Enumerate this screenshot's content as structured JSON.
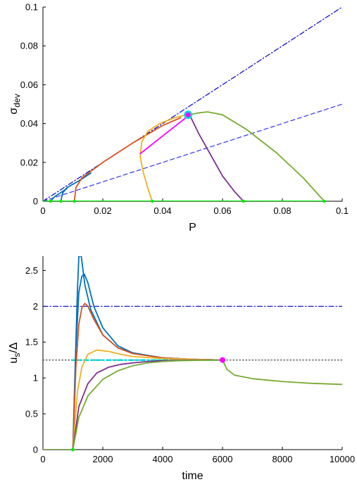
{
  "chart_data": [
    {
      "type": "line",
      "xlabel": "P",
      "ylabel_main": "σ",
      "ylabel_sub": "dev",
      "xlim": [
        0,
        0.1
      ],
      "ylim": [
        0,
        0.1
      ],
      "xticks": [
        0,
        0.02,
        0.04,
        0.06,
        0.08,
        0.1
      ],
      "xtick_labels": [
        "0",
        "0.02",
        "0.04",
        "0.06",
        "0.08",
        "0.1"
      ],
      "yticks": [
        0,
        0.02,
        0.04,
        0.06,
        0.08,
        0.1
      ],
      "ytick_labels": [
        "0",
        "0.02",
        "0.04",
        "0.06",
        "0.08",
        "0.1"
      ],
      "grid": false,
      "colors": {
        "dashdot": "#0000cc",
        "dashed": "#3333ee",
        "baseline": "#00ee00",
        "magenta": "#ff00ff",
        "cyan": "#00dddd"
      },
      "reference_lines": [
        {
          "style": "dashdot",
          "color": "#0000cc",
          "x": [
            0,
            0.1
          ],
          "y": [
            0,
            0.1
          ]
        },
        {
          "style": "dashed",
          "color": "#3333ee",
          "x": [
            0,
            0.1
          ],
          "y": [
            0,
            0.05
          ]
        }
      ],
      "series": [
        {
          "color": "#0072bd",
          "x": [
            0.0025,
            0.004,
            0.006,
            0.008
          ],
          "y": [
            0,
            0.0025,
            0.0045,
            0.0065
          ]
        },
        {
          "color": "#0072bd",
          "x": [
            0.006,
            0.0065,
            0.008,
            0.012,
            0.016
          ],
          "y": [
            0,
            0.004,
            0.007,
            0.0105,
            0.0145
          ]
        },
        {
          "color": "#d95319",
          "x": [
            0.0105,
            0.011,
            0.013,
            0.02,
            0.03,
            0.04,
            0.046
          ],
          "y": [
            0,
            0.007,
            0.012,
            0.02,
            0.03,
            0.039,
            0.043
          ]
        },
        {
          "color": "#edb120",
          "x": [
            0.0365,
            0.035,
            0.0335,
            0.0325,
            0.033,
            0.035,
            0.039,
            0.044,
            0.048
          ],
          "y": [
            0,
            0.007,
            0.015,
            0.023,
            0.0305,
            0.036,
            0.04,
            0.043,
            0.0445
          ]
        },
        {
          "color": "#7e2f8e",
          "x": [
            0.049,
            0.052,
            0.056,
            0.06,
            0.064,
            0.067
          ],
          "y": [
            0.0445,
            0.035,
            0.024,
            0.013,
            0.005,
            0
          ]
        },
        {
          "color": "#77ac30",
          "x": [
            0.049,
            0.052,
            0.055,
            0.06,
            0.068,
            0.078,
            0.087,
            0.094
          ],
          "y": [
            0.0445,
            0.0455,
            0.046,
            0.0445,
            0.037,
            0.025,
            0.012,
            0
          ]
        },
        {
          "color": "#ff00ff",
          "x": [
            0.0325,
            0.049
          ],
          "y": [
            0.0245,
            0.0445
          ]
        }
      ],
      "baseline": {
        "color": "#00ee00",
        "x": [
          0,
          0.094
        ],
        "y": [
          0,
          0
        ]
      },
      "baseline_markers": {
        "color": "#00ee00",
        "x": [
          0.0025,
          0.006,
          0.0105,
          0.0365,
          0.067,
          0.094
        ],
        "y": [
          0,
          0,
          0,
          0,
          0,
          0
        ]
      },
      "highlight_point": {
        "x": 0.0485,
        "y": 0.0445,
        "outer_color": "#00dddd",
        "inner_color": "#ff00ff"
      }
    },
    {
      "type": "line",
      "xlabel": "time",
      "ylabel_main": "u",
      "ylabel_sub": "s",
      "ylabel_tail": "/Δ",
      "xlim": [
        0,
        10000
      ],
      "ylim": [
        0,
        2.7
      ],
      "xticks": [
        0,
        2000,
        4000,
        6000,
        8000,
        10000
      ],
      "xtick_labels": [
        "0",
        "2000",
        "4000",
        "6000",
        "8000",
        "10000"
      ],
      "yticks": [
        0,
        0.5,
        1,
        1.5,
        2,
        2.5
      ],
      "ytick_labels": [
        "0",
        "0.5",
        "1",
        "1.5",
        "2",
        "2.5"
      ],
      "grid": false,
      "reference_lines": [
        {
          "style": "dashdot",
          "color": "#0000cc",
          "x": [
            0,
            10000
          ],
          "y": [
            2,
            2
          ]
        },
        {
          "style": "dotted",
          "color": "#333333",
          "x": [
            0,
            10000
          ],
          "y": [
            1.25,
            1.25
          ]
        },
        {
          "style": "dashdot-thick",
          "color": "#00dddd",
          "x": [
            1000,
            6000
          ],
          "y": [
            1.25,
            1.25
          ]
        }
      ],
      "series": [
        {
          "color": "#77ac30",
          "x": [
            0,
            1000
          ],
          "y": [
            0,
            0
          ]
        },
        {
          "color": "#0072bd",
          "x": [
            1000,
            1080,
            1150,
            1200,
            1280,
            1400,
            1600,
            2000,
            2500,
            3000,
            4000,
            5000,
            6000
          ],
          "y": [
            0,
            1.2,
            2.2,
            2.7,
            2.7,
            2.3,
            1.95,
            1.6,
            1.42,
            1.35,
            1.28,
            1.26,
            1.25
          ]
        },
        {
          "color": "#0072bd",
          "x": [
            1000,
            1100,
            1200,
            1300,
            1380,
            1500,
            1700,
            2000,
            2500,
            3000,
            4000,
            5000,
            6000
          ],
          "y": [
            0,
            1.4,
            2.2,
            2.42,
            2.45,
            2.33,
            2.0,
            1.7,
            1.45,
            1.35,
            1.28,
            1.26,
            1.25
          ]
        },
        {
          "color": "#d95319",
          "x": [
            1000,
            1100,
            1200,
            1300,
            1400,
            1500,
            1700,
            2000,
            2500,
            3000,
            4000,
            5000,
            6000
          ],
          "y": [
            0,
            1.15,
            1.75,
            1.98,
            2.04,
            2.0,
            1.82,
            1.6,
            1.42,
            1.34,
            1.28,
            1.26,
            1.25
          ]
        },
        {
          "color": "#edb120",
          "x": [
            1000,
            1150,
            1300,
            1500,
            1800,
            2200,
            2600,
            3000,
            4000,
            5000,
            6000
          ],
          "y": [
            0,
            0.8,
            1.15,
            1.33,
            1.39,
            1.37,
            1.33,
            1.3,
            1.27,
            1.26,
            1.25
          ]
        },
        {
          "color": "#7e2f8e",
          "x": [
            1000,
            1200,
            1500,
            1800,
            2200,
            2600,
            3000,
            3500,
            4000,
            5000,
            6000
          ],
          "y": [
            0,
            0.6,
            0.92,
            1.07,
            1.15,
            1.19,
            1.21,
            1.23,
            1.24,
            1.25,
            1.25
          ]
        },
        {
          "color": "#77ac30",
          "x": [
            1000,
            1200,
            1500,
            2000,
            2500,
            3000,
            3500,
            4000,
            4500,
            5000,
            6000,
            6150,
            6400,
            7000,
            8000,
            9000,
            10000
          ],
          "y": [
            0,
            0.45,
            0.75,
            0.98,
            1.1,
            1.17,
            1.21,
            1.23,
            1.24,
            1.245,
            1.25,
            1.12,
            1.04,
            0.99,
            0.95,
            0.925,
            0.91
          ]
        }
      ],
      "markers": [
        {
          "color": "#00ee00",
          "x": 1000,
          "y": 0,
          "shape": "circle-small"
        },
        {
          "color": "#ff00ff",
          "x": 6000,
          "y": 1.25,
          "shape": "circle"
        }
      ]
    }
  ]
}
